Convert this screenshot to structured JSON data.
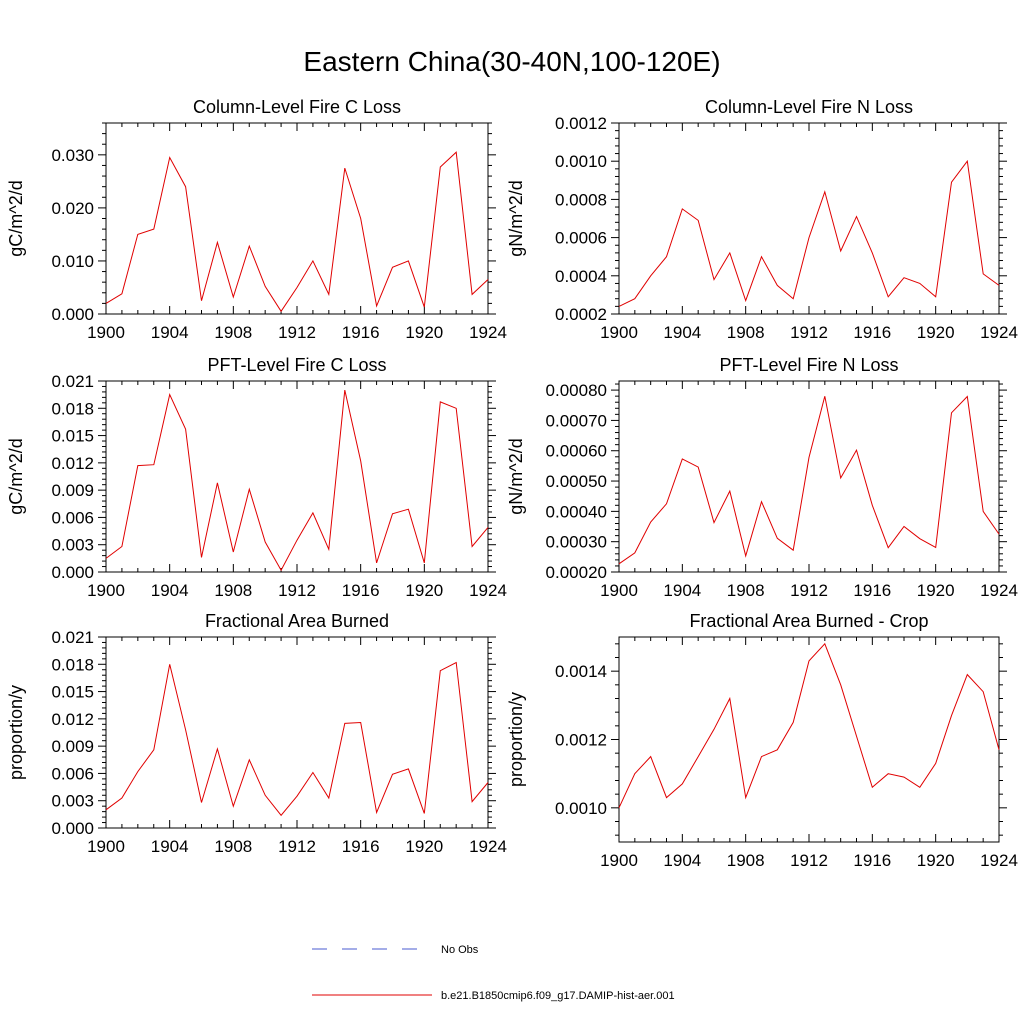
{
  "figure": {
    "title": "Eastern China(30-40N,100-120E)"
  },
  "legend": [
    {
      "label": "No Obs",
      "color": "#4a5bd1",
      "style": "dashed"
    },
    {
      "label": "b.e21.B1850cmip6.f09_g17.DAMIP-hist-aer.001",
      "color": "#e00000",
      "style": "solid"
    }
  ],
  "chart_data": [
    {
      "type": "line",
      "title": "Column-Level Fire C Loss",
      "ylabel": "gC/m^2/d",
      "xlim": [
        1900,
        1924
      ],
      "ylim": [
        0,
        0.036
      ],
      "xticks": [
        1900,
        1904,
        1908,
        1912,
        1916,
        1920,
        1924
      ],
      "yticks": [
        "0.000",
        "0.010",
        "0.020",
        "0.030"
      ],
      "ytick_values": [
        0,
        0.01,
        0.02,
        0.03
      ],
      "x": [
        1900,
        1901,
        1902,
        1903,
        1904,
        1905,
        1906,
        1907,
        1908,
        1909,
        1910,
        1911,
        1912,
        1913,
        1914,
        1915,
        1916,
        1917,
        1918,
        1919,
        1920,
        1921,
        1922,
        1923,
        1924
      ],
      "series": [
        {
          "color": "#e00000",
          "values": [
            0.002,
            0.0038,
            0.015,
            0.016,
            0.0295,
            0.024,
            0.0025,
            0.0135,
            0.0032,
            0.0128,
            0.0052,
            0.0005,
            0.005,
            0.01,
            0.0037,
            0.0275,
            0.018,
            0.0015,
            0.0088,
            0.01,
            0.0013,
            0.0277,
            0.0305,
            0.0037,
            0.0065
          ]
        }
      ]
    },
    {
      "type": "line",
      "title": "Column-Level Fire N Loss",
      "ylabel": "gN/m^2/d",
      "xlim": [
        1900,
        1924
      ],
      "ylim": [
        0.0002,
        0.0012
      ],
      "xticks": [
        1900,
        1904,
        1908,
        1912,
        1916,
        1920,
        1924
      ],
      "yticks": [
        "0.0002",
        "0.0004",
        "0.0006",
        "0.0008",
        "0.0010",
        "0.0012"
      ],
      "ytick_values": [
        0.0002,
        0.0004,
        0.0006,
        0.0008,
        0.001,
        0.0012
      ],
      "x": [
        1900,
        1901,
        1902,
        1903,
        1904,
        1905,
        1906,
        1907,
        1908,
        1909,
        1910,
        1911,
        1912,
        1913,
        1914,
        1915,
        1916,
        1917,
        1918,
        1919,
        1920,
        1921,
        1922,
        1923,
        1924
      ],
      "series": [
        {
          "color": "#e00000",
          "values": [
            0.00024,
            0.00028,
            0.0004,
            0.0005,
            0.00075,
            0.00069,
            0.00038,
            0.00052,
            0.00027,
            0.0005,
            0.00035,
            0.00028,
            0.0006,
            0.00084,
            0.00053,
            0.00071,
            0.00052,
            0.00029,
            0.00039,
            0.00036,
            0.00029,
            0.00089,
            0.001,
            0.00041,
            0.00035
          ]
        }
      ]
    },
    {
      "type": "line",
      "title": "PFT-Level Fire C Loss",
      "ylabel": "gC/m^2/d",
      "xlim": [
        1900,
        1924
      ],
      "ylim": [
        0,
        0.021
      ],
      "xticks": [
        1900,
        1904,
        1908,
        1912,
        1916,
        1920,
        1924
      ],
      "yticks": [
        "0.000",
        "0.003",
        "0.006",
        "0.009",
        "0.012",
        "0.015",
        "0.018",
        "0.021"
      ],
      "ytick_values": [
        0,
        0.003,
        0.006,
        0.009,
        0.012,
        0.015,
        0.018,
        0.021
      ],
      "x": [
        1900,
        1901,
        1902,
        1903,
        1904,
        1905,
        1906,
        1907,
        1908,
        1909,
        1910,
        1911,
        1912,
        1913,
        1914,
        1915,
        1916,
        1917,
        1918,
        1919,
        1920,
        1921,
        1922,
        1923,
        1924
      ],
      "series": [
        {
          "color": "#e00000",
          "values": [
            0.0015,
            0.0028,
            0.0117,
            0.0118,
            0.0195,
            0.0157,
            0.0016,
            0.0098,
            0.0022,
            0.0091,
            0.0033,
            0.0002,
            0.0035,
            0.0065,
            0.0025,
            0.02,
            0.0122,
            0.001,
            0.0064,
            0.0069,
            0.001,
            0.0187,
            0.018,
            0.0028,
            0.0049
          ]
        }
      ]
    },
    {
      "type": "line",
      "title": "PFT-Level Fire N Loss",
      "ylabel": "gN/m^2/d",
      "xlim": [
        1900,
        1924
      ],
      "ylim": [
        0.0002,
        0.00083
      ],
      "xticks": [
        1900,
        1904,
        1908,
        1912,
        1916,
        1920,
        1924
      ],
      "yticks": [
        "0.00020",
        "0.00030",
        "0.00040",
        "0.00050",
        "0.00060",
        "0.00070",
        "0.00080"
      ],
      "ytick_values": [
        0.0002,
        0.0003,
        0.0004,
        0.0005,
        0.0006,
        0.0007,
        0.0008
      ],
      "x": [
        1900,
        1901,
        1902,
        1903,
        1904,
        1905,
        1906,
        1907,
        1908,
        1909,
        1910,
        1911,
        1912,
        1913,
        1914,
        1915,
        1916,
        1917,
        1918,
        1919,
        1920,
        1921,
        1922,
        1923,
        1924
      ],
      "series": [
        {
          "color": "#e00000",
          "values": [
            0.000227,
            0.000263,
            0.000365,
            0.000425,
            0.000573,
            0.000546,
            0.000363,
            0.000467,
            0.000253,
            0.000432,
            0.000311,
            0.000272,
            0.000578,
            0.00078,
            0.00051,
            0.000602,
            0.00042,
            0.00028,
            0.00035,
            0.00031,
            0.000281,
            0.000725,
            0.000779,
            0.0004,
            0.000325
          ]
        }
      ]
    },
    {
      "type": "line",
      "title": "Fractional Area Burned",
      "ylabel": "proportion/y",
      "xlim": [
        1900,
        1924
      ],
      "ylim": [
        0,
        0.021
      ],
      "xticks": [
        1900,
        1904,
        1908,
        1912,
        1916,
        1920,
        1924
      ],
      "yticks": [
        "0.000",
        "0.003",
        "0.006",
        "0.009",
        "0.012",
        "0.015",
        "0.018",
        "0.021"
      ],
      "ytick_values": [
        0,
        0.003,
        0.006,
        0.009,
        0.012,
        0.015,
        0.018,
        0.021
      ],
      "x": [
        1900,
        1901,
        1902,
        1903,
        1904,
        1905,
        1906,
        1907,
        1908,
        1909,
        1910,
        1911,
        1912,
        1913,
        1914,
        1915,
        1916,
        1917,
        1918,
        1919,
        1920,
        1921,
        1922,
        1923,
        1924
      ],
      "series": [
        {
          "color": "#e00000",
          "values": [
            0.002,
            0.0033,
            0.0062,
            0.0086,
            0.018,
            0.0108,
            0.0028,
            0.0087,
            0.0024,
            0.0075,
            0.0036,
            0.0014,
            0.0035,
            0.0061,
            0.0033,
            0.0115,
            0.0116,
            0.0017,
            0.0059,
            0.0065,
            0.0016,
            0.0173,
            0.0182,
            0.0029,
            0.005
          ]
        }
      ]
    },
    {
      "type": "line",
      "title": "Fractional Area Burned - Crop",
      "ylabel": "proportion/y",
      "xlim": [
        1900,
        1924
      ],
      "ylim": [
        0.0009,
        0.0015
      ],
      "xticks": [
        1900,
        1904,
        1908,
        1912,
        1916,
        1920,
        1924
      ],
      "yticks": [
        "0.0010",
        "0.0012",
        "0.0014"
      ],
      "ytick_values": [
        0.001,
        0.0012,
        0.0014
      ],
      "x": [
        1900,
        1901,
        1902,
        1903,
        1904,
        1905,
        1906,
        1907,
        1908,
        1909,
        1910,
        1911,
        1912,
        1913,
        1914,
        1915,
        1916,
        1917,
        1918,
        1919,
        1920,
        1921,
        1922,
        1923,
        1924
      ],
      "series": [
        {
          "color": "#e00000",
          "values": [
            0.001,
            0.0011,
            0.00115,
            0.00103,
            0.00107,
            0.00115,
            0.00123,
            0.00132,
            0.00103,
            0.00115,
            0.00117,
            0.00125,
            0.00143,
            0.00148,
            0.00136,
            0.00121,
            0.00106,
            0.0011,
            0.00109,
            0.00106,
            0.00113,
            0.00127,
            0.00139,
            0.00134,
            0.00117
          ]
        }
      ]
    }
  ]
}
